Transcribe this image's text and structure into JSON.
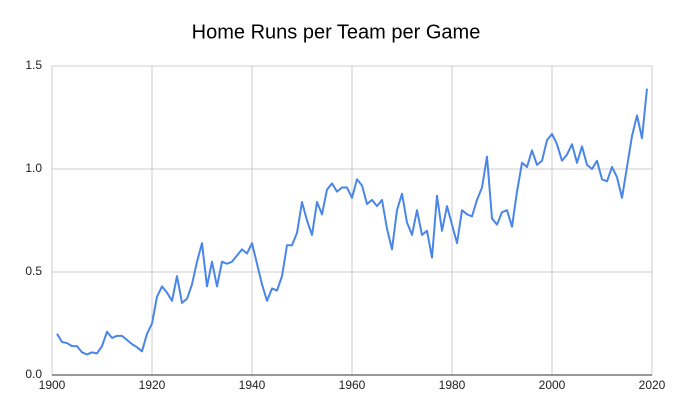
{
  "chart_data": {
    "type": "line",
    "title": "Home Runs per Team per Game",
    "x": [
      1901,
      1902,
      1903,
      1904,
      1905,
      1906,
      1907,
      1908,
      1909,
      1910,
      1911,
      1912,
      1913,
      1914,
      1915,
      1916,
      1917,
      1918,
      1919,
      1920,
      1921,
      1922,
      1923,
      1924,
      1925,
      1926,
      1927,
      1928,
      1929,
      1930,
      1931,
      1932,
      1933,
      1934,
      1935,
      1936,
      1937,
      1938,
      1939,
      1940,
      1941,
      1942,
      1943,
      1944,
      1945,
      1946,
      1947,
      1948,
      1949,
      1950,
      1951,
      1952,
      1953,
      1954,
      1955,
      1956,
      1957,
      1958,
      1959,
      1960,
      1961,
      1962,
      1963,
      1964,
      1965,
      1966,
      1967,
      1968,
      1969,
      1970,
      1971,
      1972,
      1973,
      1974,
      1975,
      1976,
      1977,
      1978,
      1979,
      1980,
      1981,
      1982,
      1983,
      1984,
      1985,
      1986,
      1987,
      1988,
      1989,
      1990,
      1991,
      1992,
      1993,
      1994,
      1995,
      1996,
      1997,
      1998,
      1999,
      2000,
      2001,
      2002,
      2003,
      2004,
      2005,
      2006,
      2007,
      2008,
      2009,
      2010,
      2011,
      2012,
      2013,
      2014,
      2015,
      2016,
      2017,
      2018,
      2019
    ],
    "series": [
      {
        "color": "#4a86e8",
        "values": [
          0.2,
          0.16,
          0.155,
          0.14,
          0.14,
          0.11,
          0.1,
          0.11,
          0.105,
          0.14,
          0.21,
          0.18,
          0.19,
          0.19,
          0.17,
          0.15,
          0.135,
          0.115,
          0.2,
          0.25,
          0.38,
          0.43,
          0.4,
          0.36,
          0.48,
          0.35,
          0.37,
          0.44,
          0.55,
          0.64,
          0.43,
          0.55,
          0.43,
          0.55,
          0.54,
          0.55,
          0.58,
          0.61,
          0.59,
          0.64,
          0.54,
          0.44,
          0.36,
          0.42,
          0.41,
          0.48,
          0.63,
          0.63,
          0.69,
          0.84,
          0.75,
          0.68,
          0.84,
          0.78,
          0.9,
          0.93,
          0.89,
          0.91,
          0.91,
          0.86,
          0.95,
          0.92,
          0.83,
          0.85,
          0.82,
          0.85,
          0.71,
          0.61,
          0.8,
          0.88,
          0.74,
          0.68,
          0.8,
          0.68,
          0.7,
          0.57,
          0.87,
          0.7,
          0.82,
          0.73,
          0.64,
          0.8,
          0.78,
          0.77,
          0.85,
          0.91,
          1.06,
          0.76,
          0.73,
          0.79,
          0.8,
          0.72,
          0.89,
          1.03,
          1.01,
          1.09,
          1.02,
          1.04,
          1.14,
          1.17,
          1.12,
          1.04,
          1.07,
          1.12,
          1.03,
          1.11,
          1.02,
          1.0,
          1.04,
          0.95,
          0.94,
          1.01,
          0.96,
          0.86,
          1.01,
          1.16,
          1.26,
          1.15,
          1.39
        ]
      }
    ],
    "xlim": [
      1900,
      2020
    ],
    "xticks": [
      1900,
      1920,
      1940,
      1960,
      1980,
      2000,
      2020
    ],
    "ylim": [
      0,
      1.5
    ],
    "yticks": [
      {
        "value": 0,
        "label": "0.0"
      },
      {
        "value": 0.5,
        "label": "0.5"
      },
      {
        "value": 1,
        "label": "1.0"
      },
      {
        "value": 1.5,
        "label": "1.5"
      }
    ],
    "grid": true
  }
}
